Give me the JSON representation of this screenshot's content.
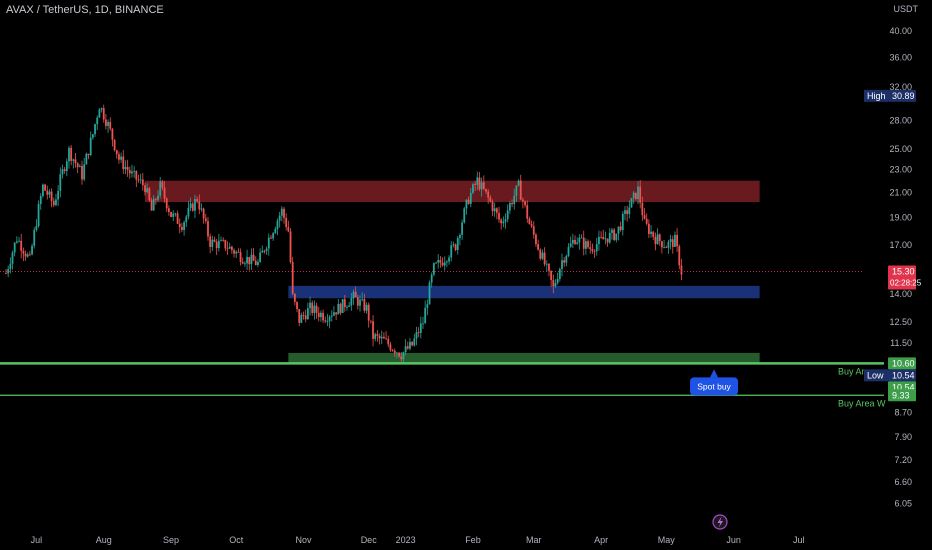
{
  "header": {
    "title": "AVAX / TetherUS, 1D, BINANCE",
    "currency": "USDT"
  },
  "chart_data": {
    "type": "candlestick",
    "ylim": [
      5.85,
      41.5
    ],
    "price_ticks": [
      "40.00",
      "36.00",
      "32.00",
      "28.00",
      "25.00",
      "23.00",
      "21.00",
      "19.00",
      "17.00",
      "14.00",
      "12.50",
      "11.50",
      "8.70",
      "7.90",
      "7.20",
      "6.60",
      "6.05"
    ],
    "time_axis": {
      "start": "2022-07-01",
      "end": "2023-07-20",
      "ticks": [
        {
          "label": "Jul",
          "date": "2022-07-15"
        },
        {
          "label": "Aug",
          "date": "2022-08-15"
        },
        {
          "label": "Sep",
          "date": "2022-09-15"
        },
        {
          "label": "Oct",
          "date": "2022-10-15"
        },
        {
          "label": "Nov",
          "date": "2022-11-15"
        },
        {
          "label": "Dec",
          "date": "2022-12-15"
        },
        {
          "label": "2023",
          "date": "2023-01-01"
        },
        {
          "label": "Feb",
          "date": "2023-02-01"
        },
        {
          "label": "Mar",
          "date": "2023-03-01"
        },
        {
          "label": "Apr",
          "date": "2023-04-01"
        },
        {
          "label": "May",
          "date": "2023-05-01"
        },
        {
          "label": "Jun",
          "date": "2023-06-01"
        },
        {
          "label": "Jul",
          "date": "2023-07-01"
        }
      ]
    },
    "price_path": [
      {
        "date": "2022-07-01",
        "price": 15.2
      },
      {
        "date": "2022-07-06",
        "price": 17.5
      },
      {
        "date": "2022-07-12",
        "price": 16.0
      },
      {
        "date": "2022-07-18",
        "price": 21.5
      },
      {
        "date": "2022-07-23",
        "price": 20.0
      },
      {
        "date": "2022-07-30",
        "price": 24.8
      },
      {
        "date": "2022-08-05",
        "price": 22.5
      },
      {
        "date": "2022-08-10",
        "price": 26.5
      },
      {
        "date": "2022-08-13",
        "price": 29.8
      },
      {
        "date": "2022-08-17",
        "price": 27.5
      },
      {
        "date": "2022-08-22",
        "price": 24.0
      },
      {
        "date": "2022-08-28",
        "price": 22.5
      },
      {
        "date": "2022-09-03",
        "price": 21.5
      },
      {
        "date": "2022-09-06",
        "price": 19.5
      },
      {
        "date": "2022-09-10",
        "price": 21.5
      },
      {
        "date": "2022-09-15",
        "price": 19.2
      },
      {
        "date": "2022-09-20",
        "price": 18.5
      },
      {
        "date": "2022-09-27",
        "price": 20.5
      },
      {
        "date": "2022-10-03",
        "price": 17.2
      },
      {
        "date": "2022-10-10",
        "price": 17.0
      },
      {
        "date": "2022-10-18",
        "price": 16.2
      },
      {
        "date": "2022-10-25",
        "price": 15.8
      },
      {
        "date": "2022-10-30",
        "price": 17.5
      },
      {
        "date": "2022-11-05",
        "price": 19.5
      },
      {
        "date": "2022-11-08",
        "price": 18.0
      },
      {
        "date": "2022-11-10",
        "price": 13.8
      },
      {
        "date": "2022-11-13",
        "price": 12.6
      },
      {
        "date": "2022-11-18",
        "price": 13.2
      },
      {
        "date": "2022-11-25",
        "price": 12.8
      },
      {
        "date": "2022-12-01",
        "price": 13.2
      },
      {
        "date": "2022-12-08",
        "price": 13.8
      },
      {
        "date": "2022-12-14",
        "price": 13.2
      },
      {
        "date": "2022-12-17",
        "price": 11.8
      },
      {
        "date": "2022-12-22",
        "price": 11.6
      },
      {
        "date": "2022-12-30",
        "price": 11.0
      },
      {
        "date": "2023-01-04",
        "price": 11.4
      },
      {
        "date": "2023-01-09",
        "price": 12.5
      },
      {
        "date": "2023-01-14",
        "price": 15.5
      },
      {
        "date": "2023-01-18",
        "price": 16.0
      },
      {
        "date": "2023-01-24",
        "price": 17.0
      },
      {
        "date": "2023-01-30",
        "price": 20.5
      },
      {
        "date": "2023-02-03",
        "price": 22.0
      },
      {
        "date": "2023-02-08",
        "price": 20.5
      },
      {
        "date": "2023-02-14",
        "price": 18.5
      },
      {
        "date": "2023-02-18",
        "price": 20.0
      },
      {
        "date": "2023-02-22",
        "price": 21.5
      },
      {
        "date": "2023-02-27",
        "price": 18.5
      },
      {
        "date": "2023-03-04",
        "price": 16.5
      },
      {
        "date": "2023-03-10",
        "price": 14.3
      },
      {
        "date": "2023-03-14",
        "price": 16.0
      },
      {
        "date": "2023-03-20",
        "price": 17.5
      },
      {
        "date": "2023-03-27",
        "price": 16.8
      },
      {
        "date": "2023-04-03",
        "price": 17.5
      },
      {
        "date": "2023-04-08",
        "price": 17.8
      },
      {
        "date": "2023-04-13",
        "price": 19.5
      },
      {
        "date": "2023-04-18",
        "price": 21.2
      },
      {
        "date": "2023-04-21",
        "price": 18.5
      },
      {
        "date": "2023-04-26",
        "price": 17.5
      },
      {
        "date": "2023-05-01",
        "price": 17.0
      },
      {
        "date": "2023-05-05",
        "price": 17.3
      },
      {
        "date": "2023-05-08",
        "price": 15.3
      }
    ],
    "zones": [
      {
        "from": "2022-09-03",
        "to": "2023-06-13",
        "low": 20.2,
        "high": 22.0,
        "color": "#7a1f24"
      },
      {
        "from": "2022-11-08",
        "to": "2023-06-13",
        "low": 13.75,
        "high": 14.45,
        "color": "#1c3a8c"
      },
      {
        "from": "2022-11-08",
        "to": "2023-06-13",
        "low": 10.6,
        "high": 11.05,
        "color": "#2c6b35"
      }
    ],
    "lines": [
      {
        "price": 10.6,
        "color": "#56c564",
        "width": 2.5
      },
      {
        "price": 9.33,
        "color": "#56c564",
        "width": 1.2
      }
    ],
    "current_price_line": 15.3,
    "price_labels": [
      {
        "price": 30.89,
        "text": "30.89",
        "tag": "High",
        "bg": "#1c2f66",
        "fg": "#ffffff"
      },
      {
        "price": 15.3,
        "text": "15.30",
        "sub": "02:28:25",
        "bg": "#e0344d",
        "fg": "#ffffff"
      },
      {
        "price": 10.6,
        "text": "10.60",
        "bg": "#3d9e4a",
        "fg": "#ffffff"
      },
      {
        "price": 10.54,
        "text": "10.54",
        "tag": "Low",
        "bg": "#1c2f66",
        "fg": "#ffffff",
        "offset": 12
      },
      {
        "price": 10.54,
        "text": "10.54",
        "bg": "#3d9e4a",
        "fg": "#ffffff",
        "offset": 24
      },
      {
        "price": 9.33,
        "text": "9.33",
        "bg": "#3d9e4a",
        "fg": "#ffffff",
        "offset": 0
      }
    ],
    "annotations": [
      {
        "text": "Buy Area ...",
        "price": 10.6,
        "color": "#56c564"
      },
      {
        "text": "Buy Area W",
        "price": 9.33,
        "color": "#56c564"
      }
    ],
    "callout": {
      "text": "Spot buy",
      "date": "2023-05-23",
      "price": 10.6,
      "bg": "#1e53e5"
    }
  }
}
